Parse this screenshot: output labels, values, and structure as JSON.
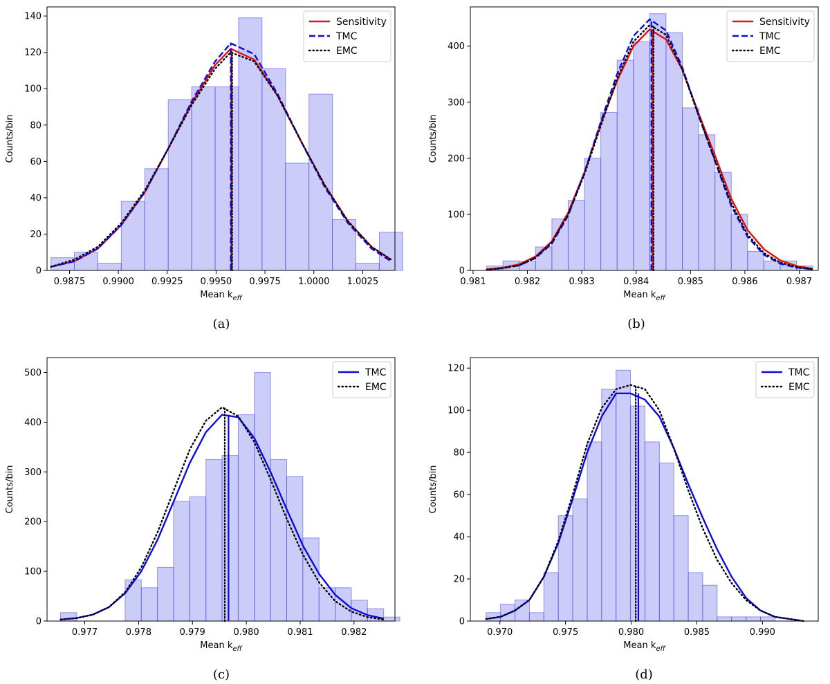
{
  "colors": {
    "hist_fill": "#8080f0",
    "hist_edge": "#4848d8",
    "sensitivity": "#e01010",
    "tmc": "#0a0ae0",
    "emc": "#000000"
  },
  "chart_data": [
    {
      "id": "a",
      "type": "bar",
      "caption": "(a)",
      "xlabel": "Mean k",
      "xlabel_sub": "eff",
      "ylabel": "Counts/bin",
      "xlim": [
        0.98635,
        1.00415
      ],
      "ylim": [
        0,
        145
      ],
      "xticks": [
        0.9875,
        0.99,
        0.9925,
        0.995,
        0.9975,
        1.0,
        1.0025
      ],
      "xtick_labels": [
        "0.9875",
        "0.9900",
        "0.9925",
        "0.9950",
        "0.9975",
        "1.0000",
        "1.0025"
      ],
      "yticks": [
        0,
        20,
        40,
        60,
        80,
        100,
        120,
        140
      ],
      "ytick_labels": [
        "0",
        "20",
        "40",
        "60",
        "80",
        "100",
        "120",
        "140"
      ],
      "legend": {
        "position": "top-right",
        "entries": [
          "Sensitivity",
          "TMC",
          "EMC"
        ]
      },
      "histogram": {
        "bin_start": 0.98655,
        "bin_width": 0.0012,
        "counts": [
          7,
          10,
          4,
          38,
          56,
          94,
          101,
          101,
          139,
          111,
          59,
          97,
          28,
          4,
          21
        ]
      },
      "series": [
        {
          "name": "Sensitivity",
          "style": "solid",
          "color_key": "sensitivity",
          "x": [
            0.98655,
            0.98775,
            0.98895,
            0.99015,
            0.99135,
            0.99255,
            0.99375,
            0.99495,
            0.99575,
            0.99695,
            0.99815,
            0.99935,
            1.00055,
            1.00175,
            1.00295,
            1.00395
          ],
          "y": [
            2,
            5,
            12,
            25,
            43,
            67,
            92,
            113,
            122,
            116,
            96,
            71,
            47,
            27,
            13,
            6
          ],
          "mean": 0.99578
        },
        {
          "name": "TMC",
          "style": "dashed",
          "color_key": "tmc",
          "x": [
            0.98655,
            0.98775,
            0.98895,
            0.99015,
            0.99135,
            0.99255,
            0.99375,
            0.99495,
            0.99575,
            0.99695,
            0.99815,
            0.99935,
            1.00055,
            1.00175,
            1.00295,
            1.00395
          ],
          "y": [
            2,
            5,
            12,
            25,
            43,
            67,
            93,
            115,
            125,
            119,
            97,
            71,
            46,
            26,
            12,
            5
          ],
          "mean": 0.99575
        },
        {
          "name": "EMC",
          "style": "dotted",
          "color_key": "emc",
          "x": [
            0.98655,
            0.98775,
            0.98895,
            0.99015,
            0.99135,
            0.99255,
            0.99375,
            0.99495,
            0.99575,
            0.99695,
            0.99815,
            0.99935,
            1.00055,
            1.00175,
            1.00295,
            1.00395
          ],
          "y": [
            2,
            6,
            13,
            26,
            44,
            67,
            91,
            111,
            120,
            115,
            96,
            71,
            47,
            27,
            13,
            6
          ],
          "mean": 0.99582
        }
      ]
    },
    {
      "id": "b",
      "type": "bar",
      "caption": "(b)",
      "xlabel": "Mean k",
      "xlabel_sub": "eff",
      "ylabel": "Counts/bin",
      "xlim": [
        0.98095,
        0.98735
      ],
      "ylim": [
        0,
        470
      ],
      "xticks": [
        0.981,
        0.982,
        0.983,
        0.984,
        0.985,
        0.986,
        0.987
      ],
      "xtick_labels": [
        "0.981",
        "0.982",
        "0.983",
        "0.984",
        "0.985",
        "0.986",
        "0.987"
      ],
      "yticks": [
        0,
        100,
        200,
        300,
        400
      ],
      "ytick_labels": [
        "0",
        "100",
        "200",
        "300",
        "400"
      ],
      "legend": {
        "position": "top-right",
        "entries": [
          "Sensitivity",
          "TMC",
          "EMC"
        ]
      },
      "histogram": {
        "bin_start": 0.98125,
        "bin_width": 0.0003,
        "counts": [
          8,
          17,
          16,
          42,
          92,
          125,
          200,
          282,
          375,
          408,
          458,
          424,
          290,
          242,
          175,
          100,
          34,
          17,
          17,
          8
        ]
      },
      "series": [
        {
          "name": "Sensitivity",
          "style": "solid",
          "color_key": "sensitivity",
          "x": [
            0.98125,
            0.98155,
            0.98185,
            0.98215,
            0.98245,
            0.98275,
            0.98305,
            0.98335,
            0.98365,
            0.98395,
            0.98425,
            0.98455,
            0.98485,
            0.98515,
            0.98545,
            0.98575,
            0.98605,
            0.98635,
            0.98665,
            0.98695,
            0.98725
          ],
          "y": [
            2,
            5,
            11,
            25,
            52,
            103,
            175,
            262,
            338,
            400,
            430,
            412,
            358,
            280,
            205,
            128,
            72,
            38,
            18,
            8,
            3
          ],
          "mean": 0.9843
        },
        {
          "name": "TMC",
          "style": "dashed",
          "color_key": "tmc",
          "x": [
            0.98125,
            0.98155,
            0.98185,
            0.98215,
            0.98245,
            0.98275,
            0.98305,
            0.98335,
            0.98365,
            0.98395,
            0.98425,
            0.98455,
            0.98485,
            0.98515,
            0.98545,
            0.98575,
            0.98605,
            0.98635,
            0.98665,
            0.98695,
            0.98725
          ],
          "y": [
            1,
            4,
            9,
            22,
            48,
            98,
            175,
            265,
            350,
            418,
            448,
            428,
            362,
            276,
            195,
            115,
            60,
            28,
            12,
            5,
            2
          ],
          "mean": 0.98428
        },
        {
          "name": "EMC",
          "style": "dotted",
          "color_key": "emc",
          "x": [
            0.98125,
            0.98155,
            0.98185,
            0.98215,
            0.98245,
            0.98275,
            0.98305,
            0.98335,
            0.98365,
            0.98395,
            0.98425,
            0.98455,
            0.98485,
            0.98515,
            0.98545,
            0.98575,
            0.98605,
            0.98635,
            0.98665,
            0.98695,
            0.98725
          ],
          "y": [
            1,
            4,
            9,
            23,
            50,
            100,
            172,
            258,
            342,
            408,
            438,
            420,
            358,
            276,
            197,
            120,
            64,
            31,
            14,
            6,
            2
          ],
          "mean": 0.98432
        }
      ]
    },
    {
      "id": "c",
      "type": "bar",
      "caption": "(c)",
      "xlabel": "Mean k",
      "xlabel_sub": "eff",
      "ylabel": "Counts/bin",
      "xlim": [
        0.9763,
        0.98276
      ],
      "ylim": [
        0,
        530
      ],
      "xticks": [
        0.977,
        0.978,
        0.979,
        0.98,
        0.981,
        0.982
      ],
      "xtick_labels": [
        "0.977",
        "0.978",
        "0.979",
        "0.980",
        "0.981",
        "0.982"
      ],
      "yticks": [
        0,
        100,
        200,
        300,
        400,
        500
      ],
      "ytick_labels": [
        "0",
        "100",
        "200",
        "300",
        "400",
        "500"
      ],
      "legend": {
        "position": "top-right",
        "entries": [
          "TMC",
          "EMC"
        ]
      },
      "histogram": {
        "bin_start": 0.97655,
        "bin_width": 0.0003,
        "counts": [
          17,
          0,
          0,
          0,
          83,
          67,
          108,
          241,
          250,
          325,
          333,
          415,
          500,
          325,
          291,
          167,
          67,
          67,
          42,
          25,
          8
        ]
      },
      "series": [
        {
          "name": "TMC",
          "style": "solid",
          "color_key": "tmc",
          "x": [
            0.97655,
            0.97685,
            0.97715,
            0.97745,
            0.97775,
            0.97805,
            0.97835,
            0.97865,
            0.97895,
            0.97925,
            0.97955,
            0.97985,
            0.98015,
            0.98045,
            0.98075,
            0.98105,
            0.98135,
            0.98165,
            0.98195,
            0.98225,
            0.98255
          ],
          "y": [
            3,
            6,
            13,
            28,
            56,
            100,
            163,
            240,
            318,
            380,
            415,
            410,
            368,
            300,
            225,
            152,
            95,
            53,
            26,
            12,
            5
          ],
          "mean": 0.97967
        },
        {
          "name": "EMC",
          "style": "dotted",
          "color_key": "emc",
          "x": [
            0.97655,
            0.97685,
            0.97715,
            0.97745,
            0.97775,
            0.97805,
            0.97835,
            0.97865,
            0.97895,
            0.97925,
            0.97955,
            0.97985,
            0.98015,
            0.98045,
            0.98075,
            0.98105,
            0.98135,
            0.98165,
            0.98195,
            0.98225,
            0.98255
          ],
          "y": [
            3,
            6,
            13,
            28,
            58,
            108,
            178,
            262,
            345,
            403,
            430,
            412,
            360,
            285,
            206,
            134,
            78,
            40,
            19,
            8,
            3
          ],
          "mean": 0.9796
        }
      ]
    },
    {
      "id": "d",
      "type": "bar",
      "caption": "(d)",
      "xlabel": "Mean k",
      "xlabel_sub": "eff",
      "ylabel": "Counts/bin",
      "xlim": [
        0.96775,
        0.99425
      ],
      "ylim": [
        0,
        125
      ],
      "xticks": [
        0.97,
        0.975,
        0.98,
        0.985,
        0.99
      ],
      "xtick_labels": [
        "0.970",
        "0.975",
        "0.980",
        "0.985",
        "0.990"
      ],
      "yticks": [
        0,
        20,
        40,
        60,
        80,
        100,
        120
      ],
      "ytick_labels": [
        "0",
        "20",
        "40",
        "60",
        "80",
        "100",
        "120"
      ],
      "legend": {
        "position": "top-right",
        "entries": [
          "TMC",
          "EMC"
        ]
      },
      "histogram": {
        "bin_start": 0.96895,
        "bin_width": 0.0011,
        "counts": [
          4,
          8,
          10,
          4,
          23,
          50,
          58,
          85,
          110,
          119,
          102,
          85,
          75,
          50,
          23,
          17,
          2,
          2,
          2,
          2
        ]
      },
      "series": [
        {
          "name": "TMC",
          "style": "solid",
          "color_key": "tmc",
          "x": [
            0.96895,
            0.97005,
            0.97115,
            0.97225,
            0.97335,
            0.97445,
            0.97555,
            0.97665,
            0.97775,
            0.97885,
            0.97995,
            0.98105,
            0.98215,
            0.98325,
            0.98435,
            0.98545,
            0.98655,
            0.98765,
            0.98875,
            0.98985,
            0.99095,
            0.99205,
            0.99315
          ],
          "y": [
            1,
            2,
            5,
            10,
            21,
            37,
            58,
            80,
            97,
            108,
            108,
            105,
            97,
            82,
            65,
            49,
            34,
            21,
            11,
            5,
            2,
            1,
            0
          ],
          "mean": 0.98055
        },
        {
          "name": "EMC",
          "style": "dotted",
          "color_key": "emc",
          "x": [
            0.96895,
            0.97005,
            0.97115,
            0.97225,
            0.97335,
            0.97445,
            0.97555,
            0.97665,
            0.97775,
            0.97885,
            0.97995,
            0.98105,
            0.98215,
            0.98325,
            0.98435,
            0.98545,
            0.98655,
            0.98765,
            0.98875,
            0.98985,
            0.99095,
            0.99205,
            0.99315
          ],
          "y": [
            1,
            2,
            5,
            10,
            21,
            38,
            60,
            84,
            101,
            110,
            112,
            110,
            100,
            82,
            62,
            44,
            29,
            18,
            10,
            5,
            2,
            1,
            0
          ],
          "mean": 0.98035
        }
      ]
    }
  ]
}
